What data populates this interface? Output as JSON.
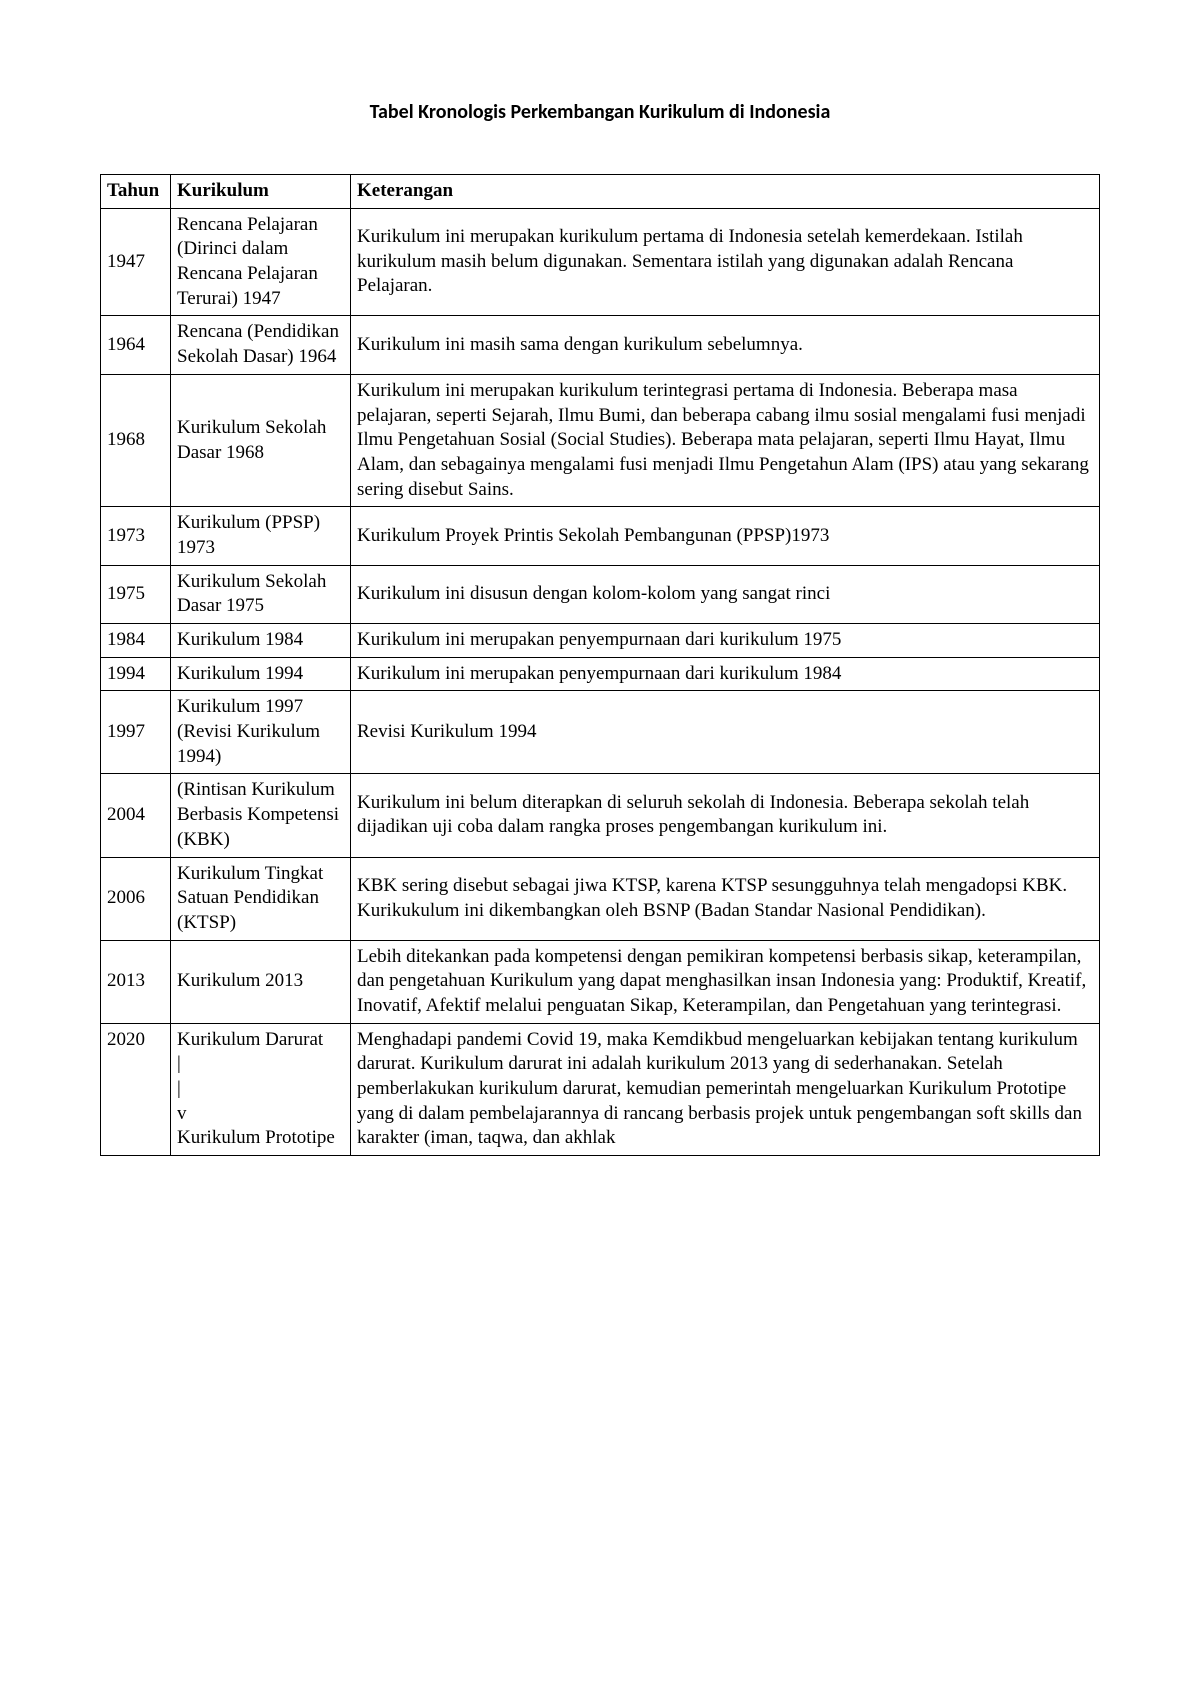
{
  "title": "Tabel Kronologis Perkembangan Kurikulum di Indonesia",
  "table": {
    "columns": [
      "Tahun",
      "Kurikulum",
      "Keterangan"
    ],
    "column_widths": [
      "70px",
      "180px",
      "auto"
    ],
    "rows": [
      {
        "tahun": "1947",
        "kurikulum": "Rencana Pelajaran (Dirinci dalam Rencana Pelajaran Terurai) 1947",
        "keterangan": "Kurikulum ini merupakan kurikulum pertama di Indonesia setelah kemerdekaan. Istilah kurikulum masih belum digunakan. Sementara istilah yang digunakan adalah Rencana Pelajaran."
      },
      {
        "tahun": "1964",
        "kurikulum": "Rencana (Pendidikan Sekolah Dasar) 1964",
        "keterangan": "Kurikulum ini masih sama dengan kurikulum sebelumnya."
      },
      {
        "tahun": "1968",
        "kurikulum": "Kurikulum Sekolah Dasar 1968",
        "keterangan": "Kurikulum ini merupakan kurikulum terintegrasi pertama di Indonesia. Beberapa masa pelajaran, seperti Sejarah, Ilmu Bumi, dan beberapa cabang ilmu sosial mengalami fusi menjadi Ilmu Pengetahuan Sosial (Social Studies). Beberapa mata pelajaran, seperti Ilmu Hayat, Ilmu Alam, dan sebagainya mengalami fusi menjadi Ilmu Pengetahun Alam (IPS) atau yang sekarang sering disebut Sains."
      },
      {
        "tahun": "1973",
        "kurikulum": "Kurikulum (PPSP) 1973",
        "keterangan": "Kurikulum Proyek Printis Sekolah Pembangunan (PPSP)1973"
      },
      {
        "tahun": "1975",
        "kurikulum": "Kurikulum Sekolah Dasar 1975",
        "keterangan": "Kurikulum ini disusun dengan kolom-kolom yang sangat rinci"
      },
      {
        "tahun": "1984",
        "kurikulum": "Kurikulum 1984",
        "keterangan": "Kurikulum ini merupakan penyempurnaan dari kurikulum 1975"
      },
      {
        "tahun": "1994",
        "kurikulum": "Kurikulum 1994",
        "keterangan": "Kurikulum ini merupakan penyempurnaan dari kurikulum 1984"
      },
      {
        "tahun": "1997",
        "kurikulum": "Kurikulum 1997 (Revisi Kurikulum 1994)",
        "keterangan": "Revisi Kurikulum 1994"
      },
      {
        "tahun": "2004",
        "kurikulum": "(Rintisan Kurikulum Berbasis Kompetensi (KBK)",
        "keterangan": "Kurikulum ini belum diterapkan di seluruh sekolah di Indonesia. Beberapa sekolah telah dijadikan uji coba dalam rangka proses pengembangan kurikulum ini."
      },
      {
        "tahun": "2006",
        "kurikulum": "Kurikulum Tingkat Satuan Pendidikan (KTSP)",
        "keterangan": "KBK sering disebut sebagai jiwa KTSP, karena KTSP sesungguhnya telah mengadopsi KBK. Kurikukulum ini dikembangkan oleh BSNP (Badan Standar Nasional Pendidikan)."
      },
      {
        "tahun": "2013",
        "kurikulum": "Kurikulum 2013",
        "keterangan": "Lebih ditekankan pada kompetensi dengan pemikiran kompetensi berbasis sikap, keterampilan, dan pengetahuan Kurikulum yang dapat menghasilkan insan Indonesia yang: Produktif, Kreatif, Inovatif, Afektif melalui penguatan Sikap, Keterampilan, dan Pengetahuan yang terintegrasi."
      },
      {
        "tahun": "2020",
        "kurikulum": "Kurikulum Darurat\n|\n|\nv\nKurikulum Prototipe",
        "keterangan": "Menghadapi pandemi Covid 19, maka Kemdikbud mengeluarkan kebijakan tentang kurikulum darurat. Kurikulum darurat ini adalah kurikulum 2013 yang di sederhanakan. Setelah pemberlakukan kurikulum darurat, kemudian pemerintah mengeluarkan Kurikulum Prototipe yang di dalam pembelajarannya di rancang berbasis projek untuk pengembangan soft skills dan karakter (iman, taqwa, dan akhlak"
      }
    ]
  },
  "colors": {
    "background": "#ffffff",
    "text": "#000000",
    "border": "#000000"
  },
  "typography": {
    "body_font": "Times New Roman",
    "title_font": "Calibri",
    "title_fontsize": 20,
    "cell_fontsize": 19
  }
}
